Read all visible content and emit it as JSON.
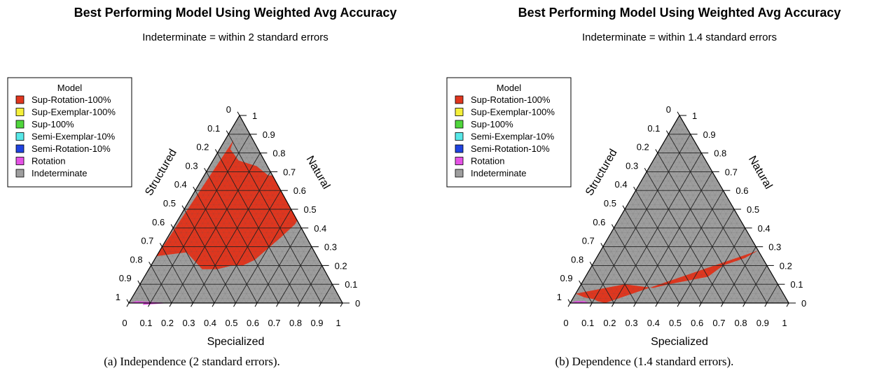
{
  "chart_data": [
    {
      "type": "ternary",
      "title": "Best Performing Model Using Weighted Avg Accuracy",
      "subtitle": "Indeterminate = within 2 standard errors",
      "caption": "(a) Independence (2 standard errors).",
      "axes": {
        "left": "Structured",
        "right": "Natural",
        "bottom": "Specialized",
        "ticks": [
          "0",
          "0.1",
          "0.2",
          "0.3",
          "0.4",
          "0.5",
          "0.6",
          "0.7",
          "0.8",
          "0.9",
          "1"
        ]
      },
      "legend": {
        "title": "Model",
        "placement": "top-left",
        "entries": [
          {
            "label": "Sup-Rotation-100%",
            "color": "#e0361e"
          },
          {
            "label": "Sup-Exemplar-100%",
            "color": "#f5f03a"
          },
          {
            "label": "Sup-100%",
            "color": "#4fd63c"
          },
          {
            "label": "Semi-Exemplar-10%",
            "color": "#58e8e8"
          },
          {
            "label": "Semi-Rotation-10%",
            "color": "#1f43e0"
          },
          {
            "label": "Rotation",
            "color": "#e552e5"
          },
          {
            "label": "Indeterminate",
            "color": "#9e9e9e"
          }
        ]
      },
      "regions": [
        {
          "model": "Sup-Rotation-100%",
          "points": [
            [
              0.13,
              0.6,
              0.27
            ],
            [
              0.25,
              0.57,
              0.18
            ],
            [
              0.32,
              0.5,
              0.18
            ],
            [
              0.38,
              0.42,
              0.2
            ],
            [
              0.43,
              0.37,
              0.2
            ],
            [
              0.47,
              0.3,
              0.23
            ],
            [
              0.53,
              0.12,
              0.35
            ],
            [
              0.56,
              0.02,
              0.42
            ],
            [
              0.56,
              0.0,
              0.44
            ],
            [
              0.32,
              0.0,
              0.68
            ],
            [
              0.3,
              0.02,
              0.68
            ],
            [
              0.22,
              0.05,
              0.73
            ],
            [
              0.12,
              0.12,
              0.76
            ],
            [
              0.05,
              0.13,
              0.82
            ],
            [
              0.04,
              0.09,
              0.87
            ],
            [
              0.0,
              0.75,
              0.25
            ]
          ]
        },
        {
          "model": "Rotation",
          "points": [
            [
              0.0,
              1.0,
              0.0
            ],
            [
              0.05,
              0.95,
              0.0
            ],
            [
              0.07,
              0.93,
              0.0
            ],
            [
              0.07,
              0.94,
              -0.01
            ],
            [
              0.19,
              0.81,
              0.0
            ],
            [
              0.03,
              0.96,
              0.01
            ]
          ]
        }
      ],
      "background_model": "Indeterminate"
    },
    {
      "type": "ternary",
      "title": "Best Performing Model Using Weighted Avg Accuracy",
      "subtitle": "Indeterminate = within 1.4 standard errors",
      "caption": "(b) Dependence (1.4 standard errors).",
      "axes": {
        "left": "Structured",
        "right": "Natural",
        "bottom": "Specialized",
        "ticks": [
          "0",
          "0.1",
          "0.2",
          "0.3",
          "0.4",
          "0.5",
          "0.6",
          "0.7",
          "0.8",
          "0.9",
          "1"
        ]
      },
      "legend": {
        "title": "Model",
        "placement": "top-left",
        "entries": [
          {
            "label": "Sup-Rotation-100%",
            "color": "#e0361e"
          },
          {
            "label": "Sup-Exemplar-100%",
            "color": "#f5f03a"
          },
          {
            "label": "Sup-100%",
            "color": "#4fd63c"
          },
          {
            "label": "Semi-Exemplar-10%",
            "color": "#58e8e8"
          },
          {
            "label": "Semi-Rotation-10%",
            "color": "#1f43e0"
          },
          {
            "label": "Rotation",
            "color": "#e552e5"
          },
          {
            "label": "Indeterminate",
            "color": "#9e9e9e"
          }
        ]
      },
      "regions": [
        {
          "model": "Sup-Rotation-100%",
          "points": [
            [
              0.0,
              0.95,
              0.05
            ],
            [
              0.05,
              0.92,
              0.03
            ],
            [
              0.1,
              0.88,
              0.02
            ],
            [
              0.12,
              0.87,
              0.01
            ],
            [
              0.16,
              0.84,
              0.0
            ],
            [
              0.72,
              0.0,
              0.28
            ],
            [
              0.68,
              0.08,
              0.24
            ],
            [
              0.6,
              0.2,
              0.2
            ],
            [
              0.56,
              0.3,
              0.14
            ],
            [
              0.48,
              0.4,
              0.12
            ],
            [
              0.4,
              0.5,
              0.1
            ],
            [
              0.34,
              0.58,
              0.08
            ],
            [
              0.2,
              0.7,
              0.1
            ],
            [
              0.12,
              0.8,
              0.08
            ]
          ]
        },
        {
          "model": "Rotation",
          "points": [
            [
              0.0,
              1.0,
              0.0
            ],
            [
              0.2,
              0.8,
              0.0
            ],
            [
              0.09,
              0.91,
              0.0
            ],
            [
              0.06,
              0.93,
              0.01
            ],
            [
              0.02,
              0.97,
              0.01
            ]
          ]
        }
      ],
      "background_model": "Indeterminate"
    }
  ]
}
